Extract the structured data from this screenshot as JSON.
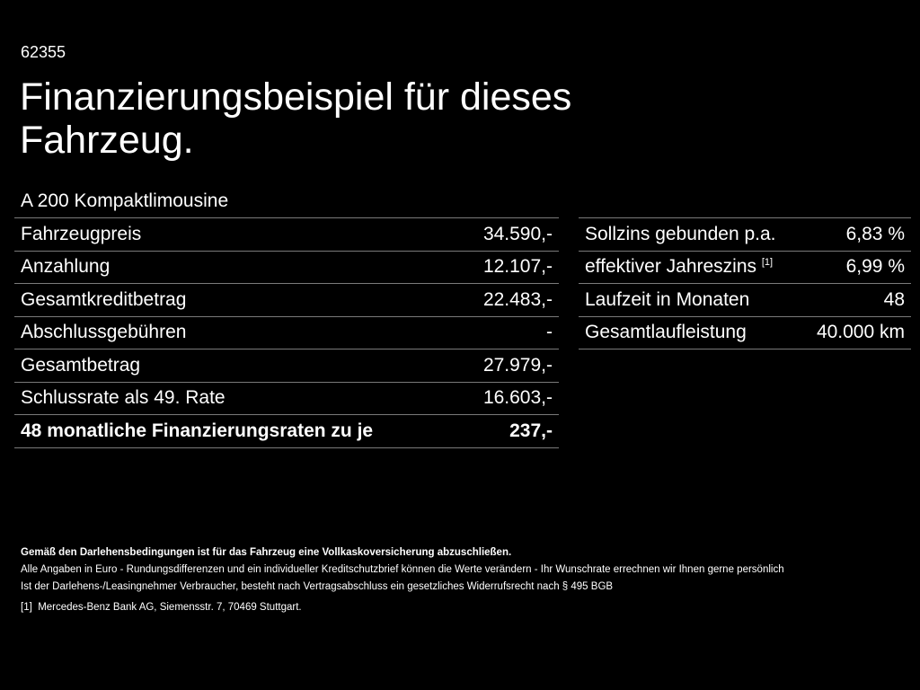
{
  "code": "62355",
  "title": "Finanzierungsbeispiel für dieses Fahrzeug.",
  "model": "A 200 Kompaktlimousine",
  "left_table": [
    {
      "label": "Fahrzeugpreis",
      "value": "34.590,-"
    },
    {
      "label": "Anzahlung",
      "value": "12.107,-"
    },
    {
      "label": "Gesamtkreditbetrag",
      "value": "22.483,-"
    },
    {
      "label": "Abschlussgebühren",
      "value": "-"
    },
    {
      "label": "Gesamtbetrag",
      "value": "27.979,-"
    },
    {
      "label": "Schlussrate als 49. Rate",
      "value": "16.603,-"
    },
    {
      "label": "48 monatliche Finanzierungsraten zu je",
      "value": "237,-"
    }
  ],
  "right_table": [
    {
      "label": "Sollzins gebunden p.a.",
      "value": "6,83 %"
    },
    {
      "label": "effektiver Jahreszins",
      "sup": "[1]",
      "value": "6,99 %"
    },
    {
      "label": "Laufzeit in Monaten",
      "value": "48"
    },
    {
      "label": "Gesamtlaufleistung",
      "value": "40.000 km"
    }
  ],
  "notes": {
    "bold": "Gemäß den Darlehensbedingungen ist für das Fahrzeug eine Vollkaskoversicherung abzuschließen.",
    "line1": "Alle Angaben in Euro - Rundungsdifferenzen und ein individueller Kreditschutzbrief können die Werte verändern - Ihr Wunschrate errechnen wir Ihnen gerne persönlich",
    "line2": "Ist der Darlehens-/Leasingnehmer Verbraucher, besteht nach Vertragsabschluss ein gesetzliches Widerrufsrecht nach § 495 BGB",
    "footnote_mark": "[1]",
    "footnote": "Mercedes-Benz Bank AG, Siemensstr. 7, 70469 Stuttgart."
  }
}
